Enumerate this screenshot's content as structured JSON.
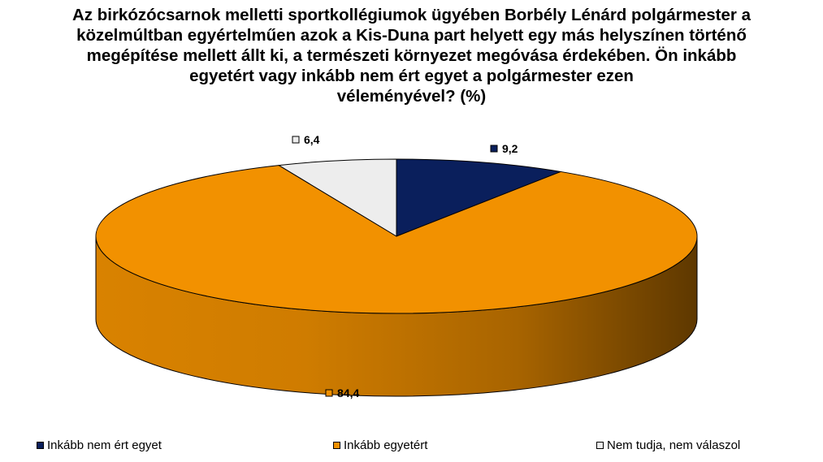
{
  "chart_data": {
    "type": "pie",
    "title_lines": [
      "Az birkózócsarnok melletti sportkollégiumok ügyében Borbély Lénárd polgármester a",
      "közelmúltban egyértelműen azok a Kis-Duna part helyett egy más helyszínen történő",
      "megépítése mellett állt ki, a természeti környezet megóvása érdekében. Ön inkább",
      "egyetért vagy inkább nem ért egyet a polgármester ezen",
      "véleményével? (%)"
    ],
    "style": "3d",
    "labels": [
      "Inkább nem ért egyet",
      "Inkább egyetért",
      "Nem tudja, nem válaszol"
    ],
    "values": [
      9.2,
      84.4,
      6.4
    ],
    "value_labels": [
      "9,2",
      "84,4",
      "6,4"
    ],
    "colors": [
      "#0a1f5c",
      "#f29100",
      "#ededed"
    ],
    "legend_position": "bottom"
  }
}
